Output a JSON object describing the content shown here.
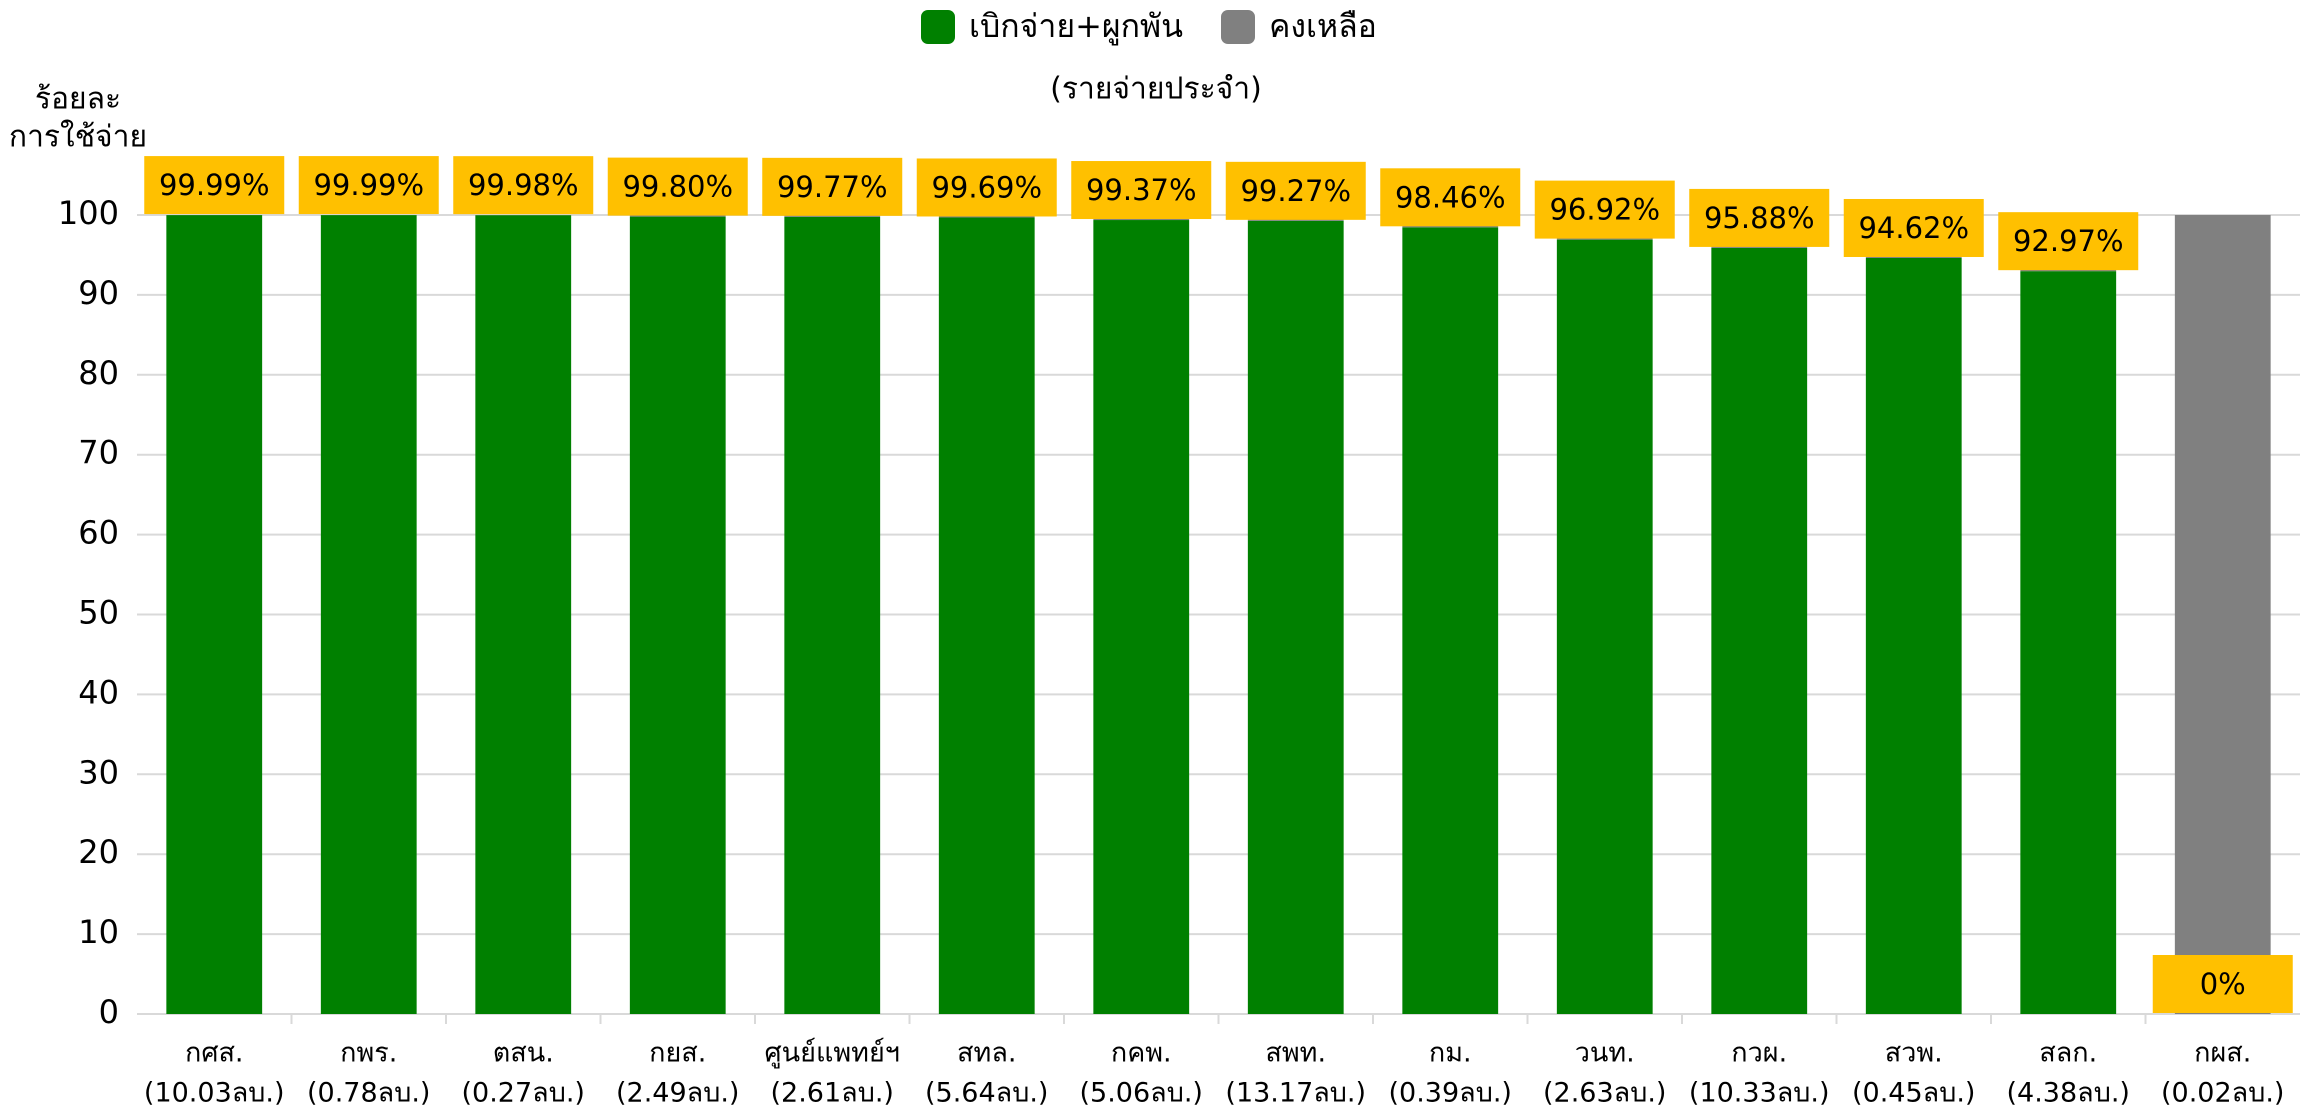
{
  "chart_data": {
    "type": "stacked_bar",
    "subtitle": "(รายจ่ายประจำ)",
    "y_label": [
      "ร้อยละ",
      "การใช้จ่าย"
    ],
    "categories": [
      [
        "กศส.",
        "(10.03ลบ.)"
      ],
      [
        "กพร.",
        "(0.78ลบ.)"
      ],
      [
        "ตสน.",
        "(0.27ลบ.)"
      ],
      [
        "กยส.",
        "(2.49ลบ.)"
      ],
      [
        "ศูนย์แพทย์ฯ",
        "(2.61ลบ.)"
      ],
      [
        "สทล.",
        "(5.64ลบ.)"
      ],
      [
        "กคพ.",
        "(5.06ลบ.)"
      ],
      [
        "สพท.",
        "(13.17ลบ.)"
      ],
      [
        "กม.",
        "(0.39ลบ.)"
      ],
      [
        "วนท.",
        "(2.63ลบ.)"
      ],
      [
        "กวผ.",
        "(10.33ลบ.)"
      ],
      [
        "สวพ.",
        "(0.45ลบ.)"
      ],
      [
        "สลก.",
        "(4.38ลบ.)"
      ],
      [
        "กผส.",
        "(0.02ลบ.)"
      ]
    ],
    "series": [
      {
        "name": "เบิกจ่าย+ผูกพัน",
        "color": "#008000",
        "values": [
          99.99,
          99.99,
          99.98,
          99.8,
          99.77,
          99.69,
          99.37,
          99.27,
          98.46,
          96.92,
          95.88,
          94.62,
          92.97,
          0
        ],
        "value_labels": [
          "99.99%",
          "99.99%",
          "99.98%",
          "99.80%",
          "99.77%",
          "99.69%",
          "99.37%",
          "99.27%",
          "98.46%",
          "96.92%",
          "95.88%",
          "94.62%",
          "92.97%",
          "0%"
        ]
      },
      {
        "name": "คงเหลือ",
        "color": "#808080",
        "values": [
          0.01,
          0.01,
          0.02,
          0.2,
          0.23,
          0.31,
          0.63,
          0.73,
          1.54,
          3.08,
          4.12,
          5.38,
          7.03,
          100
        ]
      }
    ],
    "label_color": "#FFC000",
    "ylim": [
      0,
      100
    ],
    "yticks": [
      0,
      10,
      20,
      30,
      40,
      50,
      60,
      70,
      80,
      90,
      100
    ],
    "grid": true,
    "legend": "top"
  }
}
